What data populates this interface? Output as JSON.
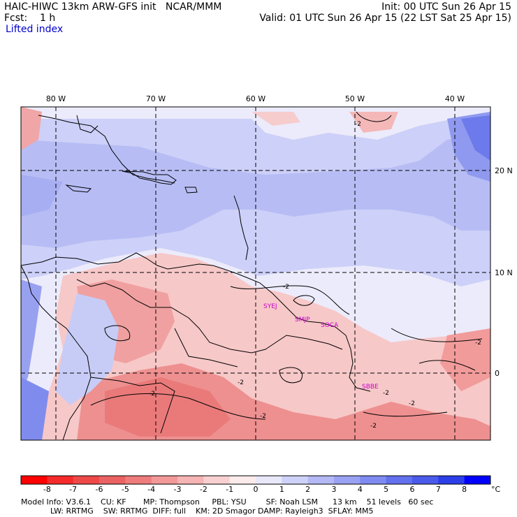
{
  "header": {
    "line1_left": "HAIC-HIWC 13km ARW-GFS init   NCAR/MMM",
    "line1_right": "Init: 00 UTC Sun 26 Apr 15",
    "line2_left": "Fcst:    1 h",
    "line2_right": "Valid: 01 UTC Sun 26 Apr 15 (22 LST Sat 25 Apr 15)",
    "field_name": "Lifted index"
  },
  "map": {
    "lon_labels": [
      "80 W",
      "70 W",
      "60 W",
      "50 W",
      "40 W"
    ],
    "lat_labels": [
      "20 N",
      "10 N",
      "0"
    ],
    "station_labels": [
      "SYEJ",
      "SMJP",
      "SOCA",
      "SBBE"
    ],
    "contour_labels": [
      "-2",
      "-2",
      "-2",
      "-2",
      "-2",
      "-2",
      "-2",
      "-2",
      "-2"
    ],
    "colors": {
      "negative": "#e8707a",
      "positive": "#6f7ef0",
      "station": "#cc00cc"
    }
  },
  "legend": {
    "ticks": [
      "-8",
      "-7",
      "-6",
      "-5",
      "-4",
      "-3",
      "-2",
      "-1",
      "0",
      "1",
      "2",
      "3",
      "4",
      "5",
      "6",
      "7",
      "8"
    ],
    "unit": "°C",
    "colors": [
      "#ff0000",
      "#f52a2a",
      "#ef4848",
      "#ea6262",
      "#ef7c7c",
      "#f29898",
      "#f6b4b4",
      "#f9d0d0",
      "#fcebeb",
      "#e8e8fb",
      "#cfd2f8",
      "#b4b9f5",
      "#9aa2f3",
      "#808bf1",
      "#6371ee",
      "#4a5aeb",
      "#2c3ee7",
      "#0000ff"
    ]
  },
  "model_info": {
    "line1": "Model Info: V3.6.1    CU: KF       MP: Thompson     PBL: YSU        SF: Noah LSM      13 km    51 levels   60 sec",
    "line2": "            LW: RRTMG    SW: RRTMG  DIFF: full    KM: 2D Smagor DAMP: Rayleigh3  SFLAY: MM5"
  }
}
